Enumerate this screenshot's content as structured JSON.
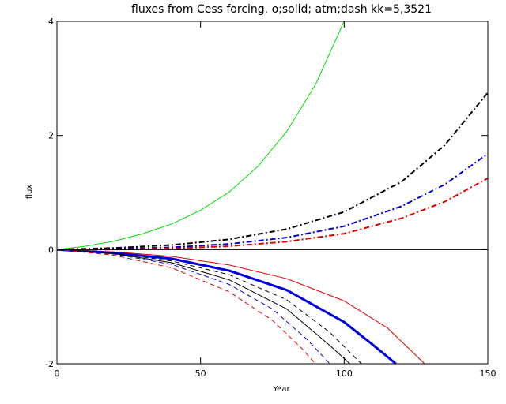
{
  "chart_data": {
    "type": "line",
    "title": "fluxes from Cess forcing. o;solid; atm;dash kk=5,3521",
    "xlabel": "Year",
    "ylabel": "flux",
    "xlim": [
      0,
      150
    ],
    "ylim": [
      -2,
      4
    ],
    "grid": false,
    "x_ticks": [
      0,
      50,
      100,
      150
    ],
    "y_ticks": [
      -2,
      0,
      2,
      4
    ],
    "zero_line": 0,
    "series": [
      {
        "color": "#00dd00",
        "style": "solid",
        "width": 1,
        "points": [
          [
            0,
            0
          ],
          [
            10,
            0.06
          ],
          [
            20,
            0.15
          ],
          [
            30,
            0.28
          ],
          [
            40,
            0.45
          ],
          [
            50,
            0.69
          ],
          [
            60,
            1.01
          ],
          [
            70,
            1.46
          ],
          [
            80,
            2.07
          ],
          [
            90,
            2.89
          ],
          [
            100,
            4.0
          ]
        ]
      },
      {
        "color": "#000000",
        "style": "dashdot",
        "width": 2,
        "points": [
          [
            0,
            0
          ],
          [
            20,
            0.03
          ],
          [
            40,
            0.08
          ],
          [
            60,
            0.18
          ],
          [
            80,
            0.36
          ],
          [
            100,
            0.66
          ],
          [
            120,
            1.19
          ],
          [
            135,
            1.83
          ],
          [
            150,
            2.75
          ]
        ]
      },
      {
        "color": "#0000dd",
        "style": "dashdot",
        "width": 2,
        "points": [
          [
            0,
            0
          ],
          [
            20,
            0.01
          ],
          [
            40,
            0.04
          ],
          [
            60,
            0.1
          ],
          [
            80,
            0.21
          ],
          [
            100,
            0.41
          ],
          [
            120,
            0.76
          ],
          [
            135,
            1.14
          ],
          [
            150,
            1.68
          ]
        ]
      },
      {
        "color": "#dd0000",
        "style": "dashdot",
        "width": 2,
        "points": [
          [
            0,
            0
          ],
          [
            20,
            0.0
          ],
          [
            40,
            0.02
          ],
          [
            60,
            0.06
          ],
          [
            80,
            0.14
          ],
          [
            100,
            0.28
          ],
          [
            120,
            0.55
          ],
          [
            135,
            0.84
          ],
          [
            150,
            1.25
          ]
        ]
      },
      {
        "color": "#dd0000",
        "style": "solid",
        "width": 1,
        "points": [
          [
            0,
            0
          ],
          [
            20,
            -0.04
          ],
          [
            40,
            -0.12
          ],
          [
            60,
            -0.27
          ],
          [
            80,
            -0.51
          ],
          [
            100,
            -0.9
          ],
          [
            115,
            -1.37
          ],
          [
            128,
            -2.0
          ]
        ]
      },
      {
        "color": "#0000dd",
        "style": "solid",
        "width": 3,
        "points": [
          [
            0,
            0
          ],
          [
            20,
            -0.06
          ],
          [
            40,
            -0.16
          ],
          [
            60,
            -0.37
          ],
          [
            80,
            -0.71
          ],
          [
            100,
            -1.27
          ],
          [
            110,
            -1.67
          ],
          [
            118,
            -2.0
          ]
        ]
      },
      {
        "color": "#000000",
        "style": "dashed",
        "width": 1,
        "points": [
          [
            0,
            0
          ],
          [
            20,
            -0.06
          ],
          [
            40,
            -0.2
          ],
          [
            60,
            -0.44
          ],
          [
            80,
            -0.88
          ],
          [
            95,
            -1.45
          ],
          [
            106,
            -2.0
          ]
        ]
      },
      {
        "color": "#000000",
        "style": "solid",
        "width": 1,
        "points": [
          [
            0,
            0
          ],
          [
            20,
            -0.07
          ],
          [
            40,
            -0.23
          ],
          [
            60,
            -0.53
          ],
          [
            80,
            -1.04
          ],
          [
            95,
            -1.68
          ],
          [
            102,
            -2.0
          ]
        ]
      },
      {
        "color": "#0000dd",
        "style": "dashed",
        "width": 1,
        "points": [
          [
            0,
            0
          ],
          [
            20,
            -0.08
          ],
          [
            40,
            -0.26
          ],
          [
            60,
            -0.61
          ],
          [
            75,
            -1.04
          ],
          [
            87,
            -1.57
          ],
          [
            95,
            -2.0
          ]
        ]
      },
      {
        "color": "#dd0000",
        "style": "dashed",
        "width": 1,
        "points": [
          [
            0,
            0
          ],
          [
            20,
            -0.1
          ],
          [
            40,
            -0.32
          ],
          [
            60,
            -0.74
          ],
          [
            75,
            -1.24
          ],
          [
            85,
            -1.72
          ],
          [
            90,
            -2.0
          ]
        ]
      }
    ]
  }
}
